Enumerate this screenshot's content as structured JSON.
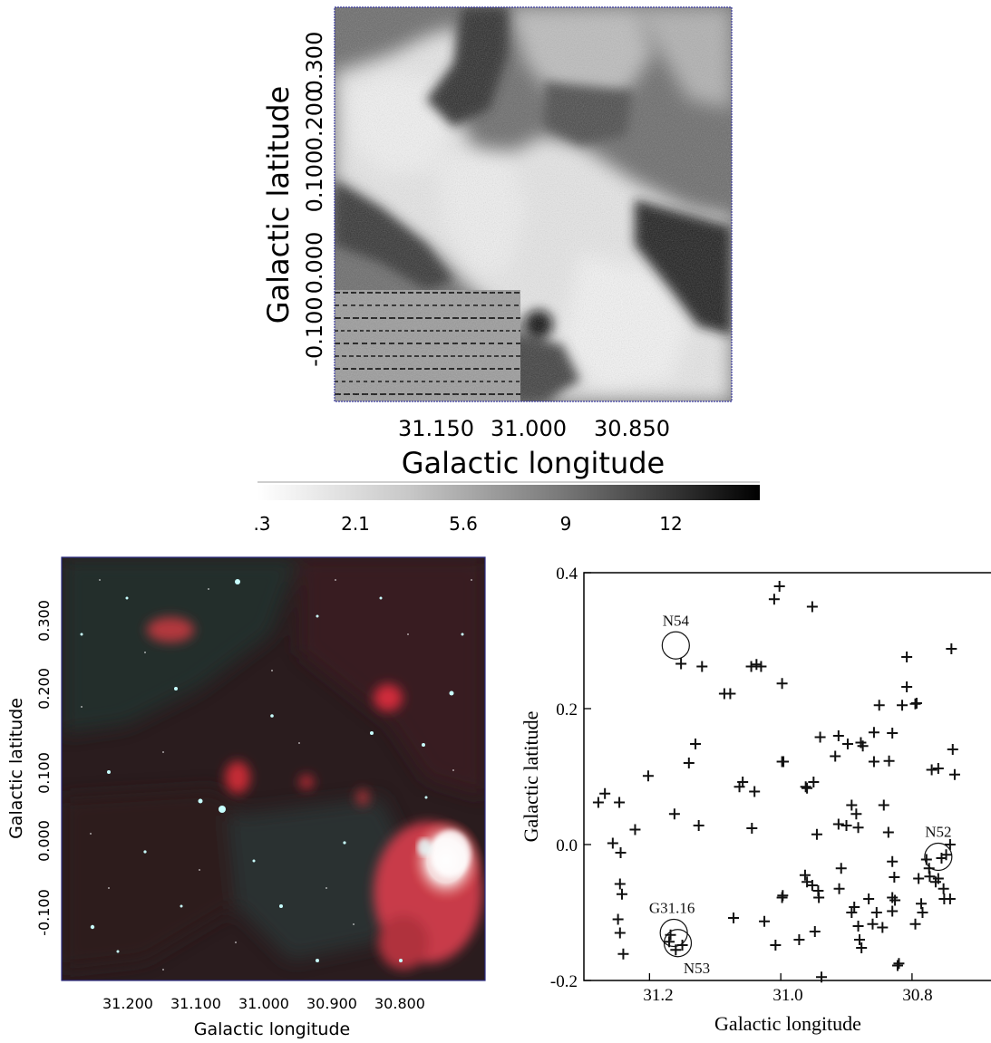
{
  "chart_data": [
    {
      "type": "heatmap",
      "xlabel": "Galactic longitude",
      "ylabel": "Galactic latitude",
      "xticks": [
        "31.150",
        "31.000",
        "30.850"
      ],
      "yticks": [
        "-0.100",
        "0.000",
        "0.100",
        "0.200",
        "0.300"
      ],
      "colorbar": {
        "ticks": [
          ".3",
          "2.1",
          "5.6",
          "9",
          "12"
        ],
        "colormap": "grayscale (white = low, black = high)"
      }
    },
    {
      "type": "heatmap",
      "xlabel": "Galactic longitude",
      "ylabel": "Galactic latitude",
      "xticks": [
        "31.200",
        "31.100",
        "31.000",
        "30.900",
        "30.800"
      ],
      "yticks": [
        "-0.100",
        "0.000",
        "0.100",
        "0.200",
        "0.300"
      ],
      "colors": {
        "red_channel": "#d42a2a",
        "cyan_channel": "#4fd6d6",
        "background": "#2a1c1e"
      }
    },
    {
      "type": "scatter",
      "xlabel": "Galactic longitude",
      "ylabel": "Galactic latitude",
      "xlim": [
        31.3,
        30.67
      ],
      "ylim": [
        -0.2,
        0.4
      ],
      "xticks": [
        "31.2",
        "31.0",
        "30.8"
      ],
      "yticks": [
        "-0.2",
        "0.0",
        "0.2",
        "0.4"
      ],
      "marker": "+",
      "points": [
        [
          31.278,
          0.062
        ],
        [
          31.268,
          0.075
        ],
        [
          31.246,
          0.062
        ],
        [
          31.222,
          0.022
        ],
        [
          31.202,
          0.101
        ],
        [
          31.256,
          0.002
        ],
        [
          31.244,
          -0.012
        ],
        [
          31.245,
          -0.058
        ],
        [
          31.242,
          -0.073
        ],
        [
          31.248,
          -0.11
        ],
        [
          31.245,
          -0.13
        ],
        [
          31.24,
          -0.161
        ],
        [
          31.162,
          0.045
        ],
        [
          31.152,
          0.266
        ],
        [
          31.12,
          0.262
        ],
        [
          31.14,
          0.12
        ],
        [
          31.13,
          0.148
        ],
        [
          31.125,
          0.028
        ],
        [
          31.086,
          0.222
        ],
        [
          31.077,
          0.222
        ],
        [
          31.058,
          0.092
        ],
        [
          31.063,
          0.085
        ],
        [
          31.045,
          0.262
        ],
        [
          31.037,
          0.265
        ],
        [
          31.03,
          0.262
        ],
        [
          31.04,
          0.078
        ],
        [
          31.044,
          0.024
        ],
        [
          31.01,
          0.361
        ],
        [
          31.002,
          0.38
        ],
        [
          30.998,
          0.237
        ],
        [
          30.998,
          0.122
        ],
        [
          30.996,
          0.122
        ],
        [
          30.952,
          0.35
        ],
        [
          30.94,
          0.158
        ],
        [
          30.912,
          0.16
        ],
        [
          30.917,
          0.13
        ],
        [
          30.898,
          0.148
        ],
        [
          30.878,
          0.15
        ],
        [
          30.875,
          0.145
        ],
        [
          30.858,
          0.165
        ],
        [
          30.85,
          0.205
        ],
        [
          30.83,
          0.164
        ],
        [
          30.858,
          0.122
        ],
        [
          30.835,
          0.123
        ],
        [
          30.808,
          0.276
        ],
        [
          30.808,
          0.232
        ],
        [
          30.815,
          0.205
        ],
        [
          30.795,
          0.207
        ],
        [
          30.793,
          0.208
        ],
        [
          30.77,
          0.11
        ],
        [
          30.76,
          0.112
        ],
        [
          30.74,
          0.288
        ],
        [
          30.738,
          0.14
        ],
        [
          30.735,
          0.103
        ],
        [
          30.742,
          0.0
        ],
        [
          30.962,
          0.085
        ],
        [
          30.96,
          0.083
        ],
        [
          30.95,
          0.092
        ],
        [
          30.945,
          0.015
        ],
        [
          30.912,
          0.03
        ],
        [
          30.9,
          0.028
        ],
        [
          30.892,
          0.058
        ],
        [
          30.885,
          0.045
        ],
        [
          30.882,
          0.025
        ],
        [
          30.843,
          0.058
        ],
        [
          30.836,
          0.018
        ],
        [
          30.83,
          -0.025
        ],
        [
          30.827,
          -0.048
        ],
        [
          30.83,
          -0.078
        ],
        [
          30.908,
          -0.035
        ],
        [
          30.911,
          -0.065
        ],
        [
          30.963,
          -0.045
        ],
        [
          30.96,
          -0.055
        ],
        [
          30.952,
          -0.06
        ],
        [
          30.943,
          -0.068
        ],
        [
          30.942,
          -0.078
        ],
        [
          30.997,
          -0.075
        ],
        [
          30.998,
          -0.078
        ],
        [
          30.888,
          -0.092
        ],
        [
          30.892,
          -0.1
        ],
        [
          30.866,
          -0.08
        ],
        [
          30.854,
          -0.1
        ],
        [
          30.882,
          -0.12
        ],
        [
          30.88,
          -0.14
        ],
        [
          30.877,
          -0.152
        ],
        [
          30.86,
          -0.117
        ],
        [
          30.845,
          -0.122
        ],
        [
          30.826,
          -0.082
        ],
        [
          30.83,
          -0.098
        ],
        [
          30.82,
          -0.175
        ],
        [
          30.822,
          -0.178
        ],
        [
          30.795,
          -0.117
        ],
        [
          30.786,
          -0.087
        ],
        [
          30.784,
          -0.1
        ],
        [
          30.778,
          -0.022
        ],
        [
          30.774,
          -0.035
        ],
        [
          30.773,
          -0.047
        ],
        [
          30.764,
          -0.055
        ],
        [
          30.76,
          -0.05
        ],
        [
          30.752,
          -0.065
        ],
        [
          30.751,
          -0.08
        ],
        [
          30.748,
          -0.015
        ],
        [
          30.742,
          -0.08
        ],
        [
          30.948,
          -0.128
        ],
        [
          30.972,
          -0.14
        ],
        [
          31.008,
          -0.148
        ],
        [
          31.025,
          -0.113
        ],
        [
          31.072,
          -0.108
        ],
        [
          30.938,
          -0.195
        ],
        [
          31.16,
          -0.155
        ],
        [
          31.15,
          -0.148
        ],
        [
          31.17,
          -0.143
        ],
        [
          31.168,
          -0.133
        ],
        [
          30.755,
          -0.02
        ],
        [
          30.79,
          -0.05
        ]
      ],
      "annotations": [
        {
          "label": "N54",
          "x": 31.16,
          "y": 0.293,
          "type": "circle"
        },
        {
          "label": "N52",
          "x": 30.76,
          "y": -0.018,
          "type": "circle"
        },
        {
          "label": "G31.16",
          "x": 31.163,
          "y": -0.13,
          "type": "circle"
        },
        {
          "label": "N53",
          "x": 31.157,
          "y": -0.145,
          "type": "circle"
        }
      ]
    }
  ]
}
